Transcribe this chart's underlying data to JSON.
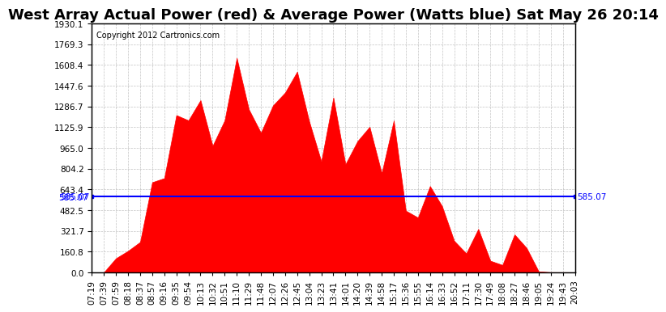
{
  "title": "West Array Actual Power (red) & Average Power (Watts blue) Sat May 26 20:14",
  "copyright": "Copyright 2012 Cartronics.com",
  "avg_power": 585.07,
  "ymax": 1930.1,
  "ymin": 0.0,
  "yticks": [
    0.0,
    160.8,
    321.7,
    482.5,
    643.4,
    804.2,
    965.0,
    1125.9,
    1286.7,
    1447.6,
    1608.4,
    1769.3,
    1930.1
  ],
  "xtick_labels": [
    "07:19",
    "07:39",
    "07:59",
    "08:18",
    "08:37",
    "08:57",
    "09:16",
    "09:35",
    "09:54",
    "10:13",
    "10:32",
    "10:51",
    "11:10",
    "11:29",
    "11:48",
    "12:07",
    "12:26",
    "12:45",
    "13:04",
    "13:23",
    "13:41",
    "14:01",
    "14:20",
    "14:39",
    "14:58",
    "15:17",
    "15:36",
    "15:55",
    "16:14",
    "16:33",
    "16:52",
    "17:11",
    "17:30",
    "17:49",
    "18:08",
    "18:27",
    "18:46",
    "19:05",
    "19:24",
    "19:43",
    "20:03"
  ],
  "background_color": "#ffffff",
  "plot_bg_color": "#ffffff",
  "grid_color": "#aaaaaa",
  "fill_color": "#ff0000",
  "line_color": "#0000ff",
  "avg_label_color": "#0000ff",
  "title_fontsize": 13,
  "copyright_fontsize": 7,
  "tick_fontsize": 7.5
}
